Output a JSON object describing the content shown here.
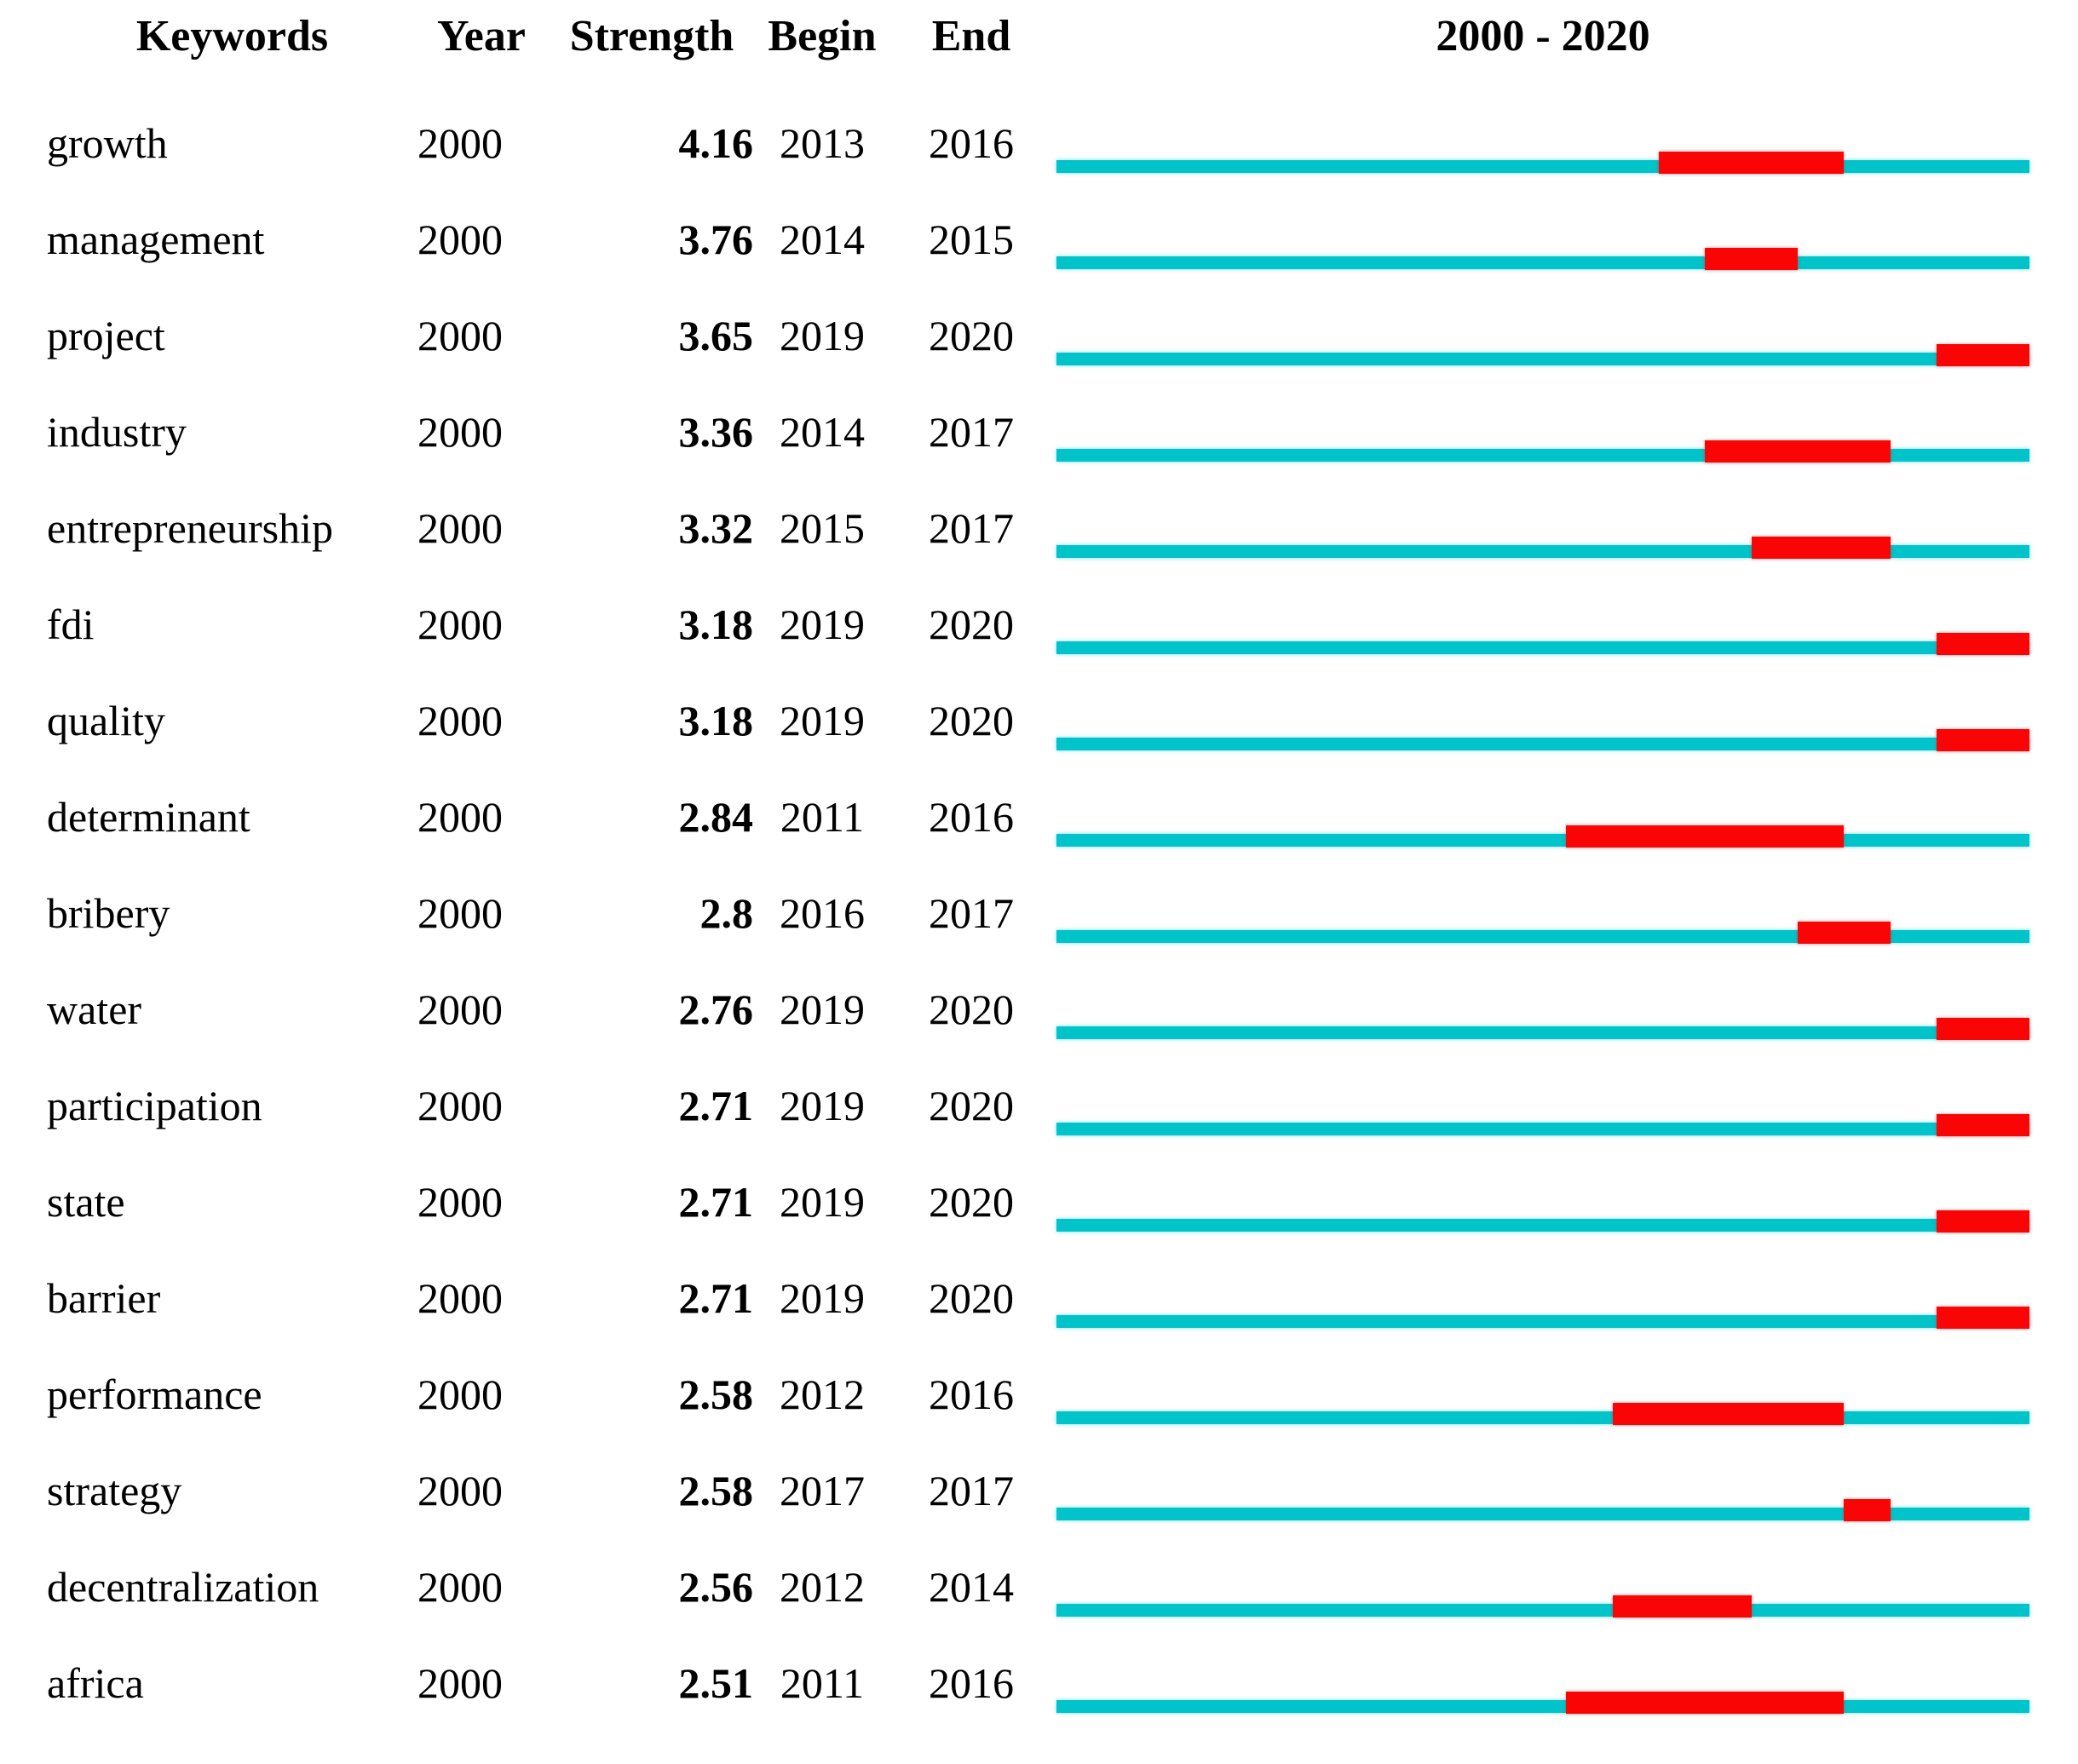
{
  "title_note": "keyword citation burst table",
  "colors": {
    "timeline": "#00C4CA",
    "burst": "#FA0505",
    "text": "#000000",
    "background": "#FFFFFF"
  },
  "header": {
    "keywords": "Keywords",
    "year": "Year",
    "strength": "Strength",
    "begin": "Begin",
    "end": "End",
    "timeline_title": "2000 - 2020"
  },
  "chart_data": {
    "type": "table",
    "subtype": "citation-burst-timeline",
    "x_range": [
      2000,
      2020
    ],
    "timeline_title": "2000 - 2020",
    "columns": [
      "Keywords",
      "Year",
      "Strength",
      "Begin",
      "End"
    ],
    "legend": {
      "timeline_color_meaning": "full period 2000-2020",
      "burst_color_meaning": "burst interval Begin-End"
    },
    "rows": [
      {
        "keyword": "growth",
        "year": 2000,
        "strength": "4.16",
        "begin": 2013,
        "end": 2016
      },
      {
        "keyword": "management",
        "year": 2000,
        "strength": "3.76",
        "begin": 2014,
        "end": 2015
      },
      {
        "keyword": "project",
        "year": 2000,
        "strength": "3.65",
        "begin": 2019,
        "end": 2020
      },
      {
        "keyword": "industry",
        "year": 2000,
        "strength": "3.36",
        "begin": 2014,
        "end": 2017
      },
      {
        "keyword": "entrepreneurship",
        "year": 2000,
        "strength": "3.32",
        "begin": 2015,
        "end": 2017
      },
      {
        "keyword": "fdi",
        "year": 2000,
        "strength": "3.18",
        "begin": 2019,
        "end": 2020
      },
      {
        "keyword": "quality",
        "year": 2000,
        "strength": "3.18",
        "begin": 2019,
        "end": 2020
      },
      {
        "keyword": "determinant",
        "year": 2000,
        "strength": "2.84",
        "begin": 2011,
        "end": 2016
      },
      {
        "keyword": "bribery",
        "year": 2000,
        "strength": "2.8",
        "begin": 2016,
        "end": 2017
      },
      {
        "keyword": "water",
        "year": 2000,
        "strength": "2.76",
        "begin": 2019,
        "end": 2020
      },
      {
        "keyword": "participation",
        "year": 2000,
        "strength": "2.71",
        "begin": 2019,
        "end": 2020
      },
      {
        "keyword": "state",
        "year": 2000,
        "strength": "2.71",
        "begin": 2019,
        "end": 2020
      },
      {
        "keyword": "barrier",
        "year": 2000,
        "strength": "2.71",
        "begin": 2019,
        "end": 2020
      },
      {
        "keyword": "performance",
        "year": 2000,
        "strength": "2.58",
        "begin": 2012,
        "end": 2016
      },
      {
        "keyword": "strategy",
        "year": 2000,
        "strength": "2.58",
        "begin": 2017,
        "end": 2017
      },
      {
        "keyword": "decentralization",
        "year": 2000,
        "strength": "2.56",
        "begin": 2012,
        "end": 2014
      },
      {
        "keyword": "africa",
        "year": 2000,
        "strength": "2.51",
        "begin": 2011,
        "end": 2016
      }
    ]
  }
}
